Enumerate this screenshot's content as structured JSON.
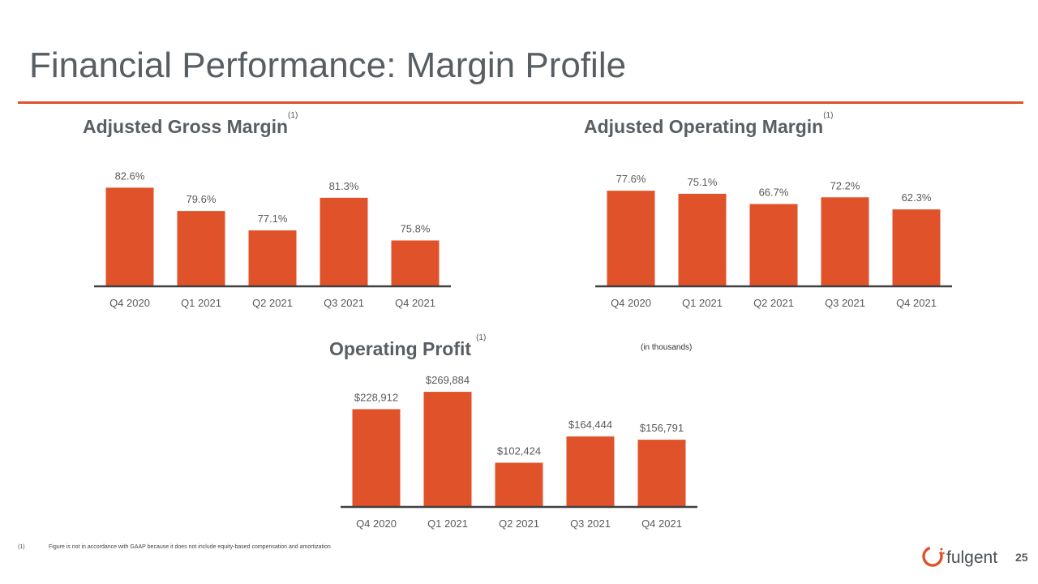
{
  "page": {
    "title": "Financial Performance: Margin Profile",
    "page_number": "25",
    "footnote_marker": "(1)",
    "footnote_text": "Figure is not in accordance with GAAP because it does not include equity-based compensation and amortization",
    "logo_text": "fulgent"
  },
  "colors": {
    "accent": "#e0522a",
    "bar": "#e0522a",
    "title": "#595e63",
    "axis": "#404040"
  },
  "charts": {
    "gross": {
      "title": "Adjusted Gross Margin",
      "sup": "(1)"
    },
    "operating": {
      "title": "Adjusted Operating Margin",
      "sup": "(1)"
    },
    "profit": {
      "title": "Operating Profit",
      "sup": "(1)",
      "units": "(in thousands)"
    }
  },
  "chart_data": [
    {
      "type": "bar",
      "title": "Adjusted Gross Margin",
      "categories": [
        "Q4 2020",
        "Q1 2021",
        "Q2 2021",
        "Q3 2021",
        "Q4 2021"
      ],
      "values": [
        82.6,
        79.6,
        77.1,
        81.3,
        75.8
      ],
      "labels": [
        "82.6%",
        "79.6%",
        "77.1%",
        "81.3%",
        "75.8%"
      ],
      "ylim": [
        70,
        84
      ],
      "xlabel": "",
      "ylabel": ""
    },
    {
      "type": "bar",
      "title": "Adjusted Operating Margin",
      "categories": [
        "Q4 2020",
        "Q1 2021",
        "Q2 2021",
        "Q3 2021",
        "Q4 2021"
      ],
      "values": [
        77.6,
        75.1,
        66.7,
        72.2,
        62.3
      ],
      "labels": [
        "77.6%",
        "75.1%",
        "66.7%",
        "72.2%",
        "62.3%"
      ],
      "ylim": [
        0,
        85
      ],
      "xlabel": "",
      "ylabel": ""
    },
    {
      "type": "bar",
      "title": "Operating Profit",
      "categories": [
        "Q4 2020",
        "Q1 2021",
        "Q2 2021",
        "Q3 2021",
        "Q4 2021"
      ],
      "values": [
        228912,
        269884,
        102424,
        164444,
        156791
      ],
      "labels": [
        "$228,912",
        "$269,884",
        "$102,424",
        "$164,444",
        "$156,791"
      ],
      "ylim": [
        0,
        270000
      ],
      "xlabel": "",
      "ylabel": ""
    }
  ]
}
